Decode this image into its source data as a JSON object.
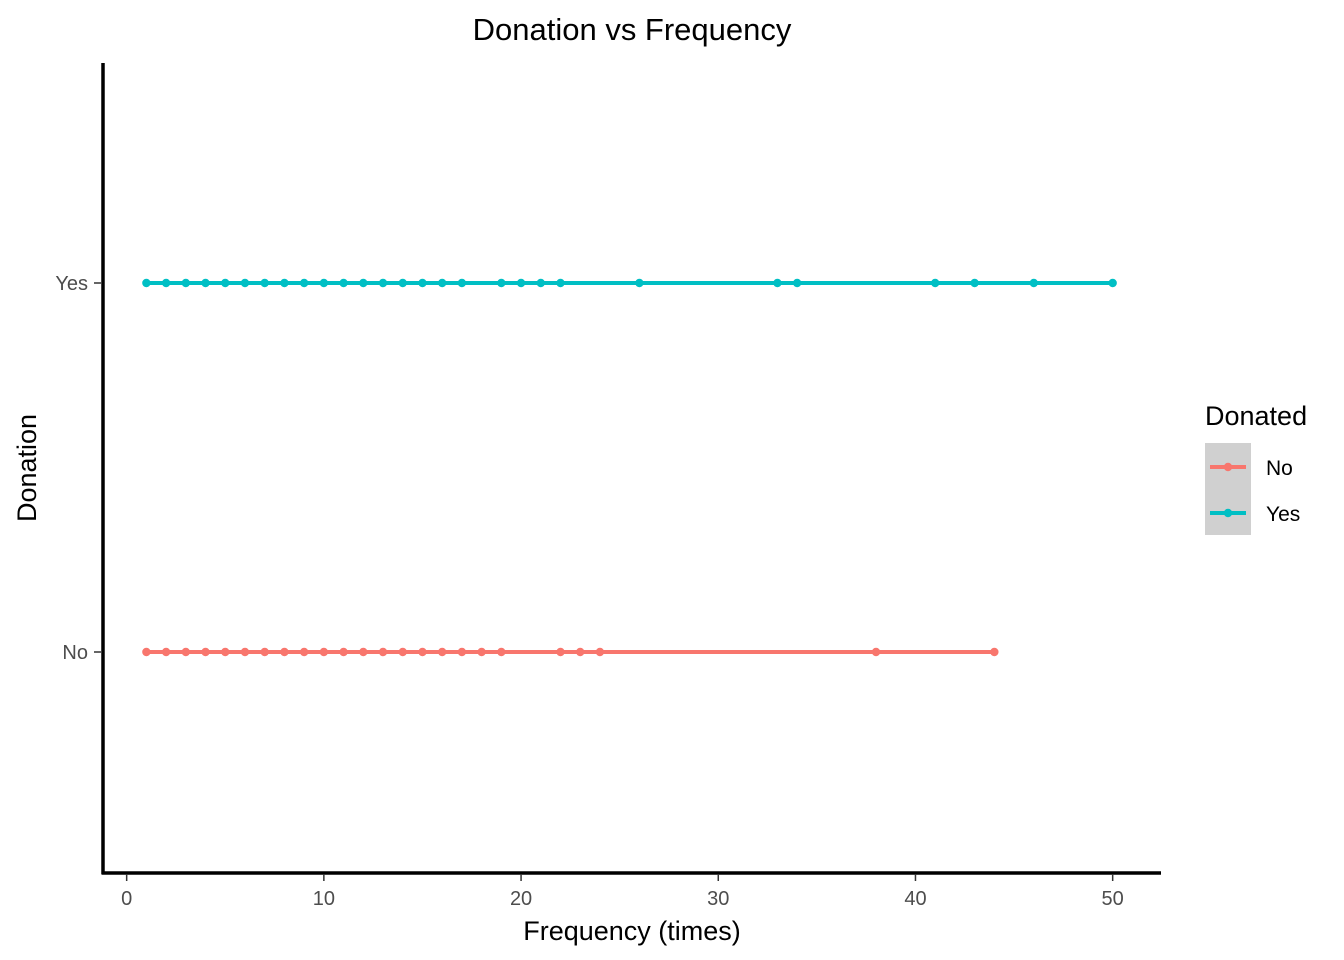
{
  "chart_data": {
    "type": "line",
    "title": "Donation vs Frequency",
    "xlabel": "Frequency (times)",
    "ylabel": "Donation",
    "xlim": [
      -1.2,
      52.4
    ],
    "xticks": [
      0,
      10,
      20,
      30,
      40,
      50
    ],
    "y_categories": [
      "No",
      "Yes"
    ],
    "grid": false,
    "legend": {
      "title": "Donated",
      "placement": "right",
      "entries": [
        "No",
        "Yes"
      ]
    },
    "series": [
      {
        "name": "No",
        "category": "No",
        "color": "#F8766D",
        "x": [
          1,
          2,
          3,
          4,
          5,
          6,
          7,
          8,
          9,
          10,
          11,
          12,
          13,
          14,
          15,
          16,
          17,
          18,
          19,
          22,
          23,
          24,
          38,
          44
        ]
      },
      {
        "name": "Yes",
        "category": "Yes",
        "color": "#00BFC4",
        "x": [
          1,
          2,
          3,
          4,
          5,
          6,
          7,
          8,
          9,
          10,
          11,
          12,
          13,
          14,
          15,
          16,
          17,
          19,
          20,
          21,
          22,
          26,
          33,
          34,
          41,
          43,
          46,
          50
        ]
      }
    ]
  }
}
